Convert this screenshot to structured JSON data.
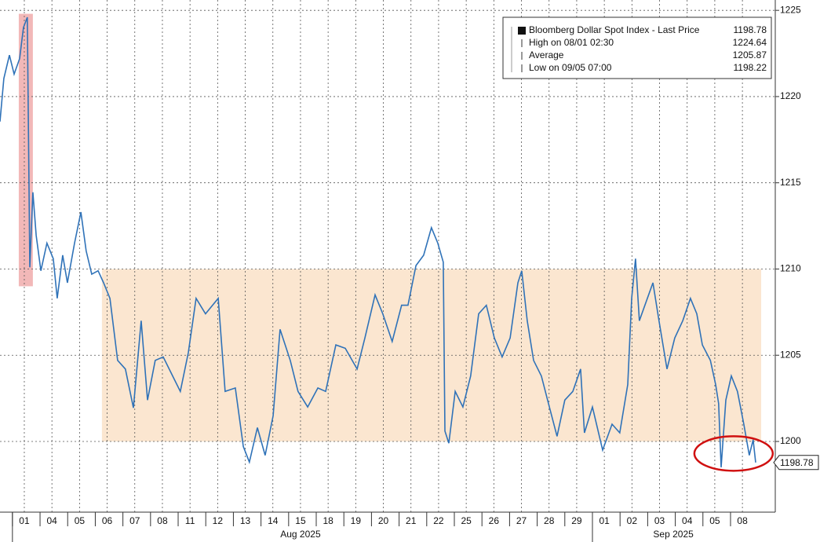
{
  "chart_data": {
    "type": "line",
    "series": [
      {
        "name": "Bloomberg Dollar Spot Index - Last Price",
        "color": "#2f72b8",
        "x": [
          -0.88,
          -0.74,
          -0.54,
          -0.37,
          -0.17,
          -0.03,
          0.11,
          0.2,
          0.31,
          0.43,
          0.6,
          0.82,
          1.05,
          1.19,
          1.39,
          1.56,
          1.82,
          2.05,
          2.24,
          2.44,
          2.67,
          2.87,
          3.1,
          3.38,
          3.66,
          3.95,
          4.23,
          4.46,
          4.74,
          5.03,
          5.37,
          5.65,
          5.94,
          6.22,
          6.56,
          7.02,
          7.27,
          7.64,
          7.93,
          8.15,
          8.44,
          8.72,
          9.01,
          9.26,
          9.63,
          9.91,
          10.26,
          10.63,
          10.91,
          11.28,
          11.62,
          12.05,
          12.33,
          12.7,
          12.98,
          13.32,
          13.66,
          13.89,
          14.18,
          14.46,
          14.74,
          14.97,
          15.17,
          15.23,
          15.37,
          15.6,
          15.88,
          16.16,
          16.45,
          16.73,
          17.02,
          17.3,
          17.59,
          17.87,
          18.01,
          18.21,
          18.44,
          18.72,
          19.01,
          19.29,
          19.57,
          19.86,
          20.14,
          20.28,
          20.57,
          20.94,
          21.28,
          21.56,
          21.85,
          21.99,
          22.13,
          22.27,
          22.56,
          22.76,
          22.98,
          23.27,
          23.55,
          23.84,
          24.12,
          24.35,
          24.55,
          24.84,
          25.03,
          25.14,
          25.23,
          25.4,
          25.6,
          25.82,
          26.05,
          26.25,
          26.39,
          26.48
        ],
        "values": [
          1218.55,
          1221.05,
          1222.4,
          1221.3,
          1222.2,
          1224.0,
          1224.6,
          1210.1,
          1214.45,
          1211.95,
          1209.9,
          1211.5,
          1210.6,
          1208.3,
          1210.8,
          1209.2,
          1211.5,
          1213.3,
          1211.05,
          1209.7,
          1209.9,
          1209.2,
          1208.3,
          1204.7,
          1204.2,
          1201.95,
          1207.0,
          1202.4,
          1204.7,
          1204.9,
          1203.8,
          1202.9,
          1205.15,
          1208.3,
          1207.4,
          1208.3,
          1202.9,
          1203.1,
          1199.7,
          1198.8,
          1200.8,
          1199.2,
          1201.5,
          1206.5,
          1204.7,
          1202.9,
          1202.0,
          1203.1,
          1202.9,
          1205.6,
          1205.4,
          1204.2,
          1206.0,
          1208.5,
          1207.4,
          1205.8,
          1207.9,
          1207.9,
          1210.2,
          1210.8,
          1212.4,
          1211.5,
          1210.4,
          1200.6,
          1199.9,
          1202.9,
          1202.0,
          1203.8,
          1207.4,
          1207.9,
          1206.0,
          1204.9,
          1206.0,
          1209.2,
          1209.9,
          1207.0,
          1204.7,
          1203.8,
          1202.0,
          1200.3,
          1202.4,
          1202.9,
          1204.2,
          1200.5,
          1202.0,
          1199.5,
          1201.0,
          1200.5,
          1203.3,
          1208.3,
          1210.6,
          1207.0,
          1208.3,
          1209.2,
          1207.0,
          1204.2,
          1206.0,
          1207.0,
          1208.3,
          1207.4,
          1205.6,
          1204.7,
          1203.3,
          1202.2,
          1198.5,
          1202.4,
          1203.8,
          1202.9,
          1201.0,
          1199.2,
          1200.1,
          1198.78
        ]
      }
    ],
    "xlim": [
      -0.88,
      27.19
    ],
    "xticks": [
      {
        "value": 0,
        "label": "01"
      },
      {
        "value": 1,
        "label": "04"
      },
      {
        "value": 2,
        "label": "05"
      },
      {
        "value": 3,
        "label": "06"
      },
      {
        "value": 4,
        "label": "07"
      },
      {
        "value": 5,
        "label": "08"
      },
      {
        "value": 6,
        "label": "11"
      },
      {
        "value": 7,
        "label": "12"
      },
      {
        "value": 8,
        "label": "13"
      },
      {
        "value": 9,
        "label": "14"
      },
      {
        "value": 10,
        "label": "15"
      },
      {
        "value": 11,
        "label": "18"
      },
      {
        "value": 12,
        "label": "19"
      },
      {
        "value": 13,
        "label": "20"
      },
      {
        "value": 14,
        "label": "21"
      },
      {
        "value": 15,
        "label": "22"
      },
      {
        "value": 16,
        "label": "25"
      },
      {
        "value": 17,
        "label": "26"
      },
      {
        "value": 18,
        "label": "27"
      },
      {
        "value": 19,
        "label": "28"
      },
      {
        "value": 20,
        "label": "29"
      },
      {
        "value": 21,
        "label": "01"
      },
      {
        "value": 22,
        "label": "02"
      },
      {
        "value": 23,
        "label": "03"
      },
      {
        "value": 24,
        "label": "04"
      },
      {
        "value": 25,
        "label": "05"
      },
      {
        "value": 26,
        "label": "08"
      }
    ],
    "months": [
      {
        "label": "Aug 2025",
        "first": 0,
        "last": 20
      },
      {
        "label": "Sep 2025",
        "first": 21,
        "last": 26
      }
    ],
    "ylim": [
      1195.9,
      1225.6
    ],
    "yticks": [
      1200,
      1205,
      1210,
      1215,
      1220,
      1225
    ],
    "grid": true,
    "legend": [
      {
        "label": "Bloomberg Dollar Spot Index - Last Price",
        "value": 1198.78
      },
      {
        "label": "High on 08/01 02:30",
        "value": 1224.64
      },
      {
        "label": "Average",
        "value": 1205.87
      },
      {
        "label": "Low on 09/05 07:00",
        "value": 1198.22
      }
    ],
    "highlights": [
      {
        "x": [
          -0.2,
          0.31
        ],
        "y": [
          1209.0,
          1224.8
        ],
        "color": "#f2b8b8"
      },
      {
        "x": [
          2.81,
          26.68
        ],
        "y": [
          1200,
          1210
        ],
        "color": "#fbe6d0"
      }
    ],
    "circle": {
      "x": 25.68,
      "y": 1199.3,
      "rx": 1.42,
      "ry": 1.0,
      "color": "#d01010"
    }
  }
}
